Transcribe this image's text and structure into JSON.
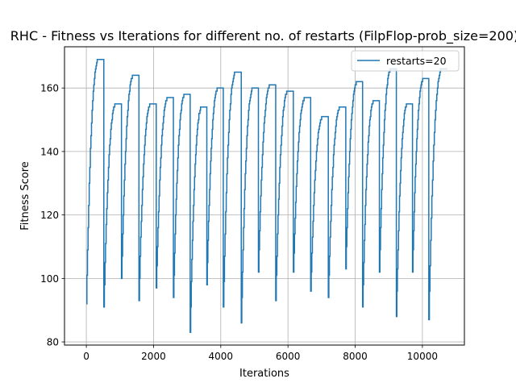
{
  "chart_data": {
    "type": "line",
    "title": "RHC - Fitness vs Iterations for different no. of restarts (FilpFlop-prob_size=200)",
    "xlabel": "Iterations",
    "ylabel": "Fitness Score",
    "xlim": [
      -650,
      11250
    ],
    "ylim": [
      79,
      173
    ],
    "xticks": [
      0,
      2000,
      4000,
      6000,
      8000,
      10000
    ],
    "yticks": [
      80,
      100,
      120,
      140,
      160
    ],
    "grid": true,
    "legend_position": "top-right",
    "series": [
      {
        "name": "restarts=20",
        "color": "#1f77b4",
        "runs": [
          {
            "start": 0,
            "len": 520,
            "y0": 92,
            "ymax": 169
          },
          {
            "start": 520,
            "len": 525,
            "y0": 91,
            "ymax": 155
          },
          {
            "start": 1045,
            "len": 520,
            "y0": 100,
            "ymax": 164
          },
          {
            "start": 1565,
            "len": 515,
            "y0": 93,
            "ymax": 155
          },
          {
            "start": 2080,
            "len": 510,
            "y0": 97,
            "ymax": 157
          },
          {
            "start": 2590,
            "len": 500,
            "y0": 94,
            "ymax": 158
          },
          {
            "start": 3090,
            "len": 495,
            "y0": 83,
            "ymax": 154
          },
          {
            "start": 3585,
            "len": 490,
            "y0": 98,
            "ymax": 160
          },
          {
            "start": 4075,
            "len": 535,
            "y0": 91,
            "ymax": 165
          },
          {
            "start": 4610,
            "len": 510,
            "y0": 86,
            "ymax": 160
          },
          {
            "start": 5120,
            "len": 515,
            "y0": 102,
            "ymax": 161
          },
          {
            "start": 5635,
            "len": 525,
            "y0": 93,
            "ymax": 159
          },
          {
            "start": 6160,
            "len": 515,
            "y0": 102,
            "ymax": 157
          },
          {
            "start": 6675,
            "len": 525,
            "y0": 96,
            "ymax": 151
          },
          {
            "start": 7200,
            "len": 520,
            "y0": 94,
            "ymax": 154
          },
          {
            "start": 7720,
            "len": 500,
            "y0": 103,
            "ymax": 162
          },
          {
            "start": 8220,
            "len": 500,
            "y0": 91,
            "ymax": 156
          },
          {
            "start": 8720,
            "len": 505,
            "y0": 102,
            "ymax": 166
          },
          {
            "start": 9225,
            "len": 480,
            "y0": 88,
            "ymax": 155
          },
          {
            "start": 9705,
            "len": 485,
            "y0": 102,
            "ymax": 163
          },
          {
            "start": 10190,
            "len": 560,
            "y0": 87,
            "ymax": 166
          }
        ]
      }
    ]
  }
}
